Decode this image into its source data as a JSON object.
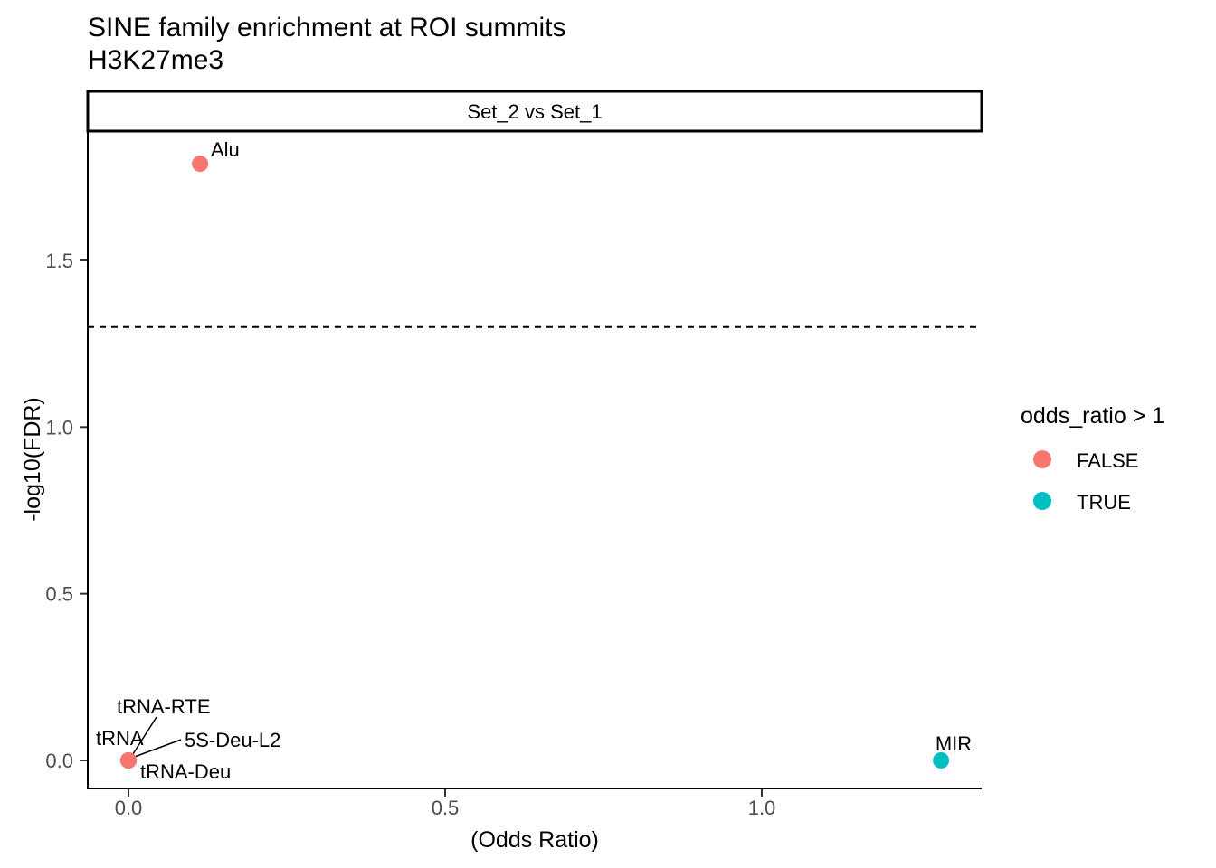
{
  "chart_data": {
    "type": "scatter",
    "title": "SINE family enrichment at ROI summits",
    "subtitle": "H3K27me3",
    "facet_label": "Set_2 vs Set_1",
    "xlabel": "(Odds Ratio)",
    "ylabel": "-log10(FDR)",
    "xlim": [
      -0.065,
      1.35
    ],
    "ylim": [
      -0.085,
      1.89
    ],
    "grid": false,
    "x_ticks": [
      "0.0",
      "0.5",
      "1.0"
    ],
    "x_tick_values": [
      0.0,
      0.5,
      1.0
    ],
    "y_ticks": [
      "0.0",
      "0.5",
      "1.0",
      "1.5"
    ],
    "y_tick_values": [
      0.0,
      0.5,
      1.0,
      1.5
    ],
    "threshold": {
      "y": 1.3,
      "style": "dashed",
      "color": "#000000"
    },
    "colors": {
      "FALSE": "#F8766D",
      "TRUE": "#00BFC4"
    },
    "points": [
      {
        "label": "Alu",
        "x": 0.113,
        "y": 1.79,
        "group": "FALSE"
      },
      {
        "label": "tRNA",
        "x": 0.0,
        "y": 0.0,
        "group": "FALSE"
      },
      {
        "label": "tRNA-RTE",
        "x": 0.0,
        "y": 0.0,
        "group": "FALSE"
      },
      {
        "label": "5S-Deu-L2",
        "x": 0.0,
        "y": 0.0,
        "group": "FALSE"
      },
      {
        "label": "tRNA-Deu",
        "x": 0.0,
        "y": 0.0,
        "group": "FALSE"
      },
      {
        "label": "MIR",
        "x": 1.283,
        "y": 0.0,
        "group": "TRUE"
      }
    ],
    "legend": {
      "title": "odds_ratio > 1",
      "position": "right",
      "entries": [
        {
          "label": "FALSE",
          "color": "#F8766D"
        },
        {
          "label": "TRUE",
          "color": "#00BFC4"
        }
      ]
    }
  }
}
